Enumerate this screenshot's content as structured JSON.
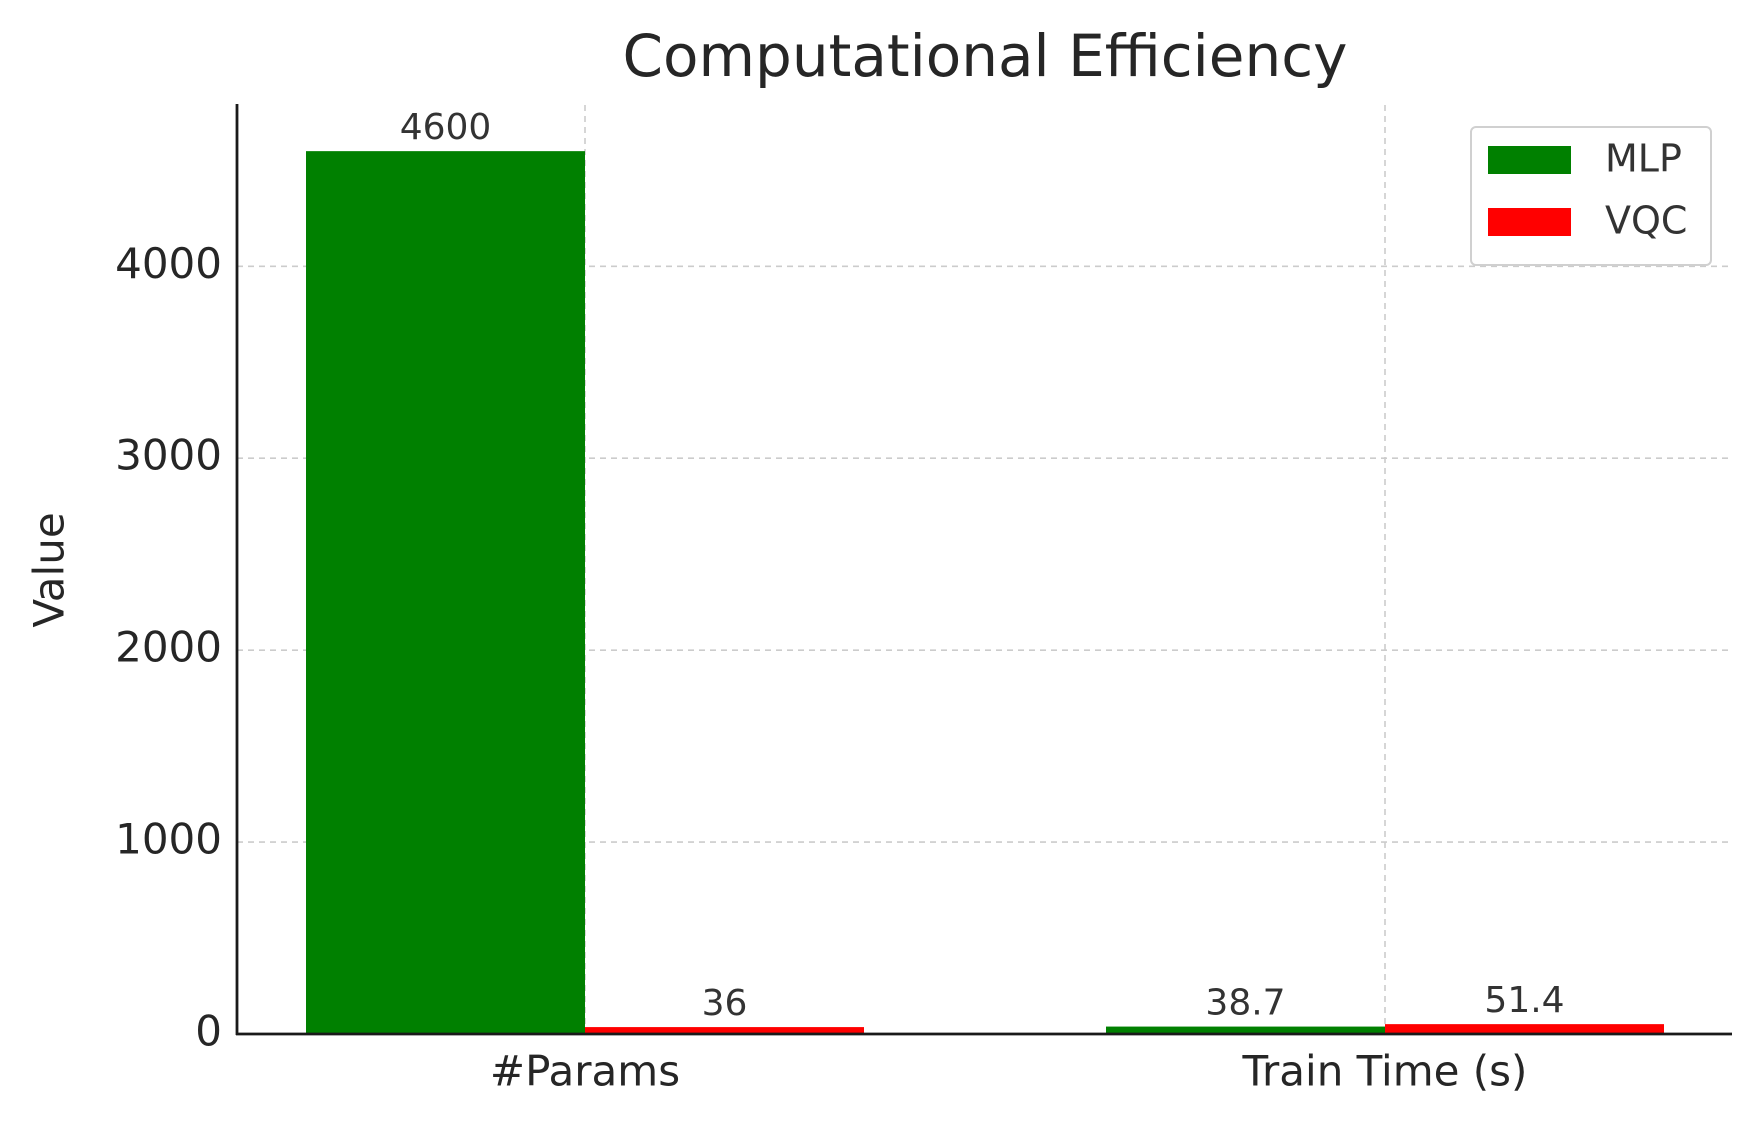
{
  "chart_data": {
    "type": "bar",
    "title": "Computational Efficiency",
    "y_label": "Value",
    "categories": [
      "#Params",
      "Train Time (s)"
    ],
    "series": [
      {
        "name": "MLP",
        "color": "#008000",
        "values": [
          4600,
          38.7
        ]
      },
      {
        "name": "VQC",
        "color": "#ff0000",
        "values": [
          36,
          51.4
        ]
      }
    ],
    "ylim": [
      0,
      4830
    ],
    "yticks": [
      0,
      1000,
      2000,
      3000,
      4000
    ],
    "grid": true,
    "legend": "upper right"
  }
}
